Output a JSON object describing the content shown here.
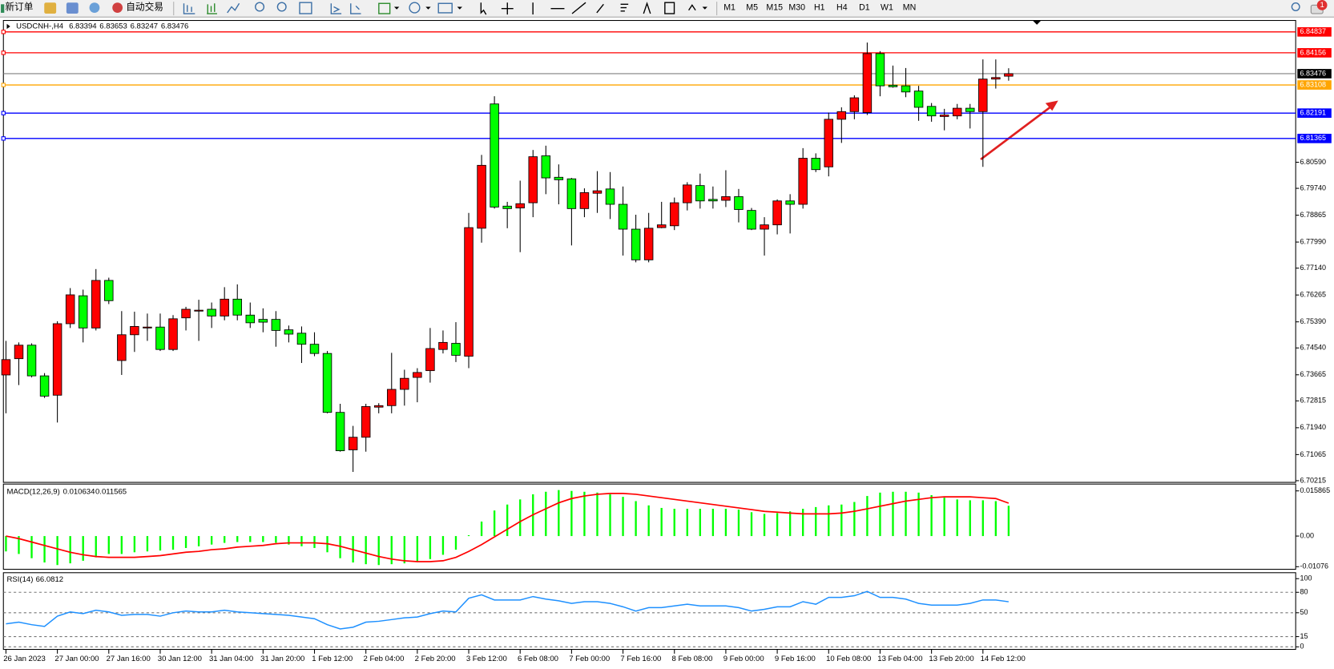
{
  "toolbar": {
    "new_order": "新订单",
    "auto_trading": "自动交易",
    "timeframes": [
      "M1",
      "M5",
      "M15",
      "M30",
      "H1",
      "H4",
      "D1",
      "W1",
      "MN"
    ],
    "badge": "1"
  },
  "chart_data": [
    {
      "type": "candlestick",
      "title": "USDCNH-,H4",
      "categories": [
        "26 Jan 2023",
        null,
        null,
        null,
        "27 Jan 00:00",
        null,
        null,
        null,
        "27 Jan 16:00",
        null,
        null,
        null,
        "30 Jan 12:00",
        null,
        null,
        null,
        "31 Jan 04:00",
        null,
        null,
        null,
        "31 Jan 20:00",
        null,
        null,
        null,
        "1 Feb 12:00",
        null,
        null,
        null,
        "2 Feb 04:00",
        null,
        null,
        null,
        "2 Feb 20:00",
        null,
        null,
        null,
        "3 Feb 12:00",
        null,
        null,
        null,
        "6 Feb 08:00",
        null,
        null,
        null,
        "7 Feb 00:00",
        null,
        null,
        null,
        "7 Feb 16:00",
        null,
        null,
        null,
        "8 Feb 08:00",
        null,
        null,
        null,
        "9 Feb 00:00",
        null,
        null,
        null,
        "9 Feb 16:00",
        null,
        null,
        null,
        "10 Feb 08:00",
        null,
        null,
        null,
        "13 Feb 04:00",
        null,
        null,
        null,
        "13 Feb 20:00",
        null,
        null,
        null,
        "14 Feb 12:00",
        null,
        null
      ],
      "open": [
        6.7366,
        6.7419,
        6.7463,
        6.7363,
        6.73,
        6.7533,
        6.7624,
        6.7519,
        6.7674,
        6.7413,
        6.7497,
        6.7519,
        6.7522,
        6.7449,
        6.7552,
        6.7574,
        6.758,
        6.7558,
        6.7613,
        6.7561,
        6.7547,
        6.7547,
        6.7513,
        6.7502,
        6.7466,
        6.7436,
        6.7244,
        6.7122,
        6.7163,
        6.7261,
        6.7266,
        6.7319,
        6.7358,
        6.738,
        6.7449,
        6.7469,
        6.7427,
        6.7844,
        6.8249,
        6.7916,
        6.791,
        6.7927,
        6.808,
        6.801,
        6.8005,
        6.7908,
        6.7958,
        6.7972,
        6.7922,
        6.7841,
        6.7741,
        6.7846,
        6.7852,
        6.7927,
        6.7983,
        6.7938,
        6.7935,
        6.7947,
        6.7902,
        6.7841,
        6.7855,
        6.7933,
        6.7922,
        6.8072,
        6.8044,
        6.8199,
        6.8224,
        6.8221,
        6.8413,
        6.831,
        6.8308,
        6.8291,
        6.8241,
        6.8208,
        6.821,
        6.8235,
        6.8224,
        6.833,
        6.83394
      ],
      "high": [
        6.7477,
        6.7472,
        6.7469,
        6.7372,
        6.7541,
        6.7649,
        6.7644,
        6.7711,
        6.7683,
        6.7574,
        6.7572,
        6.7566,
        6.7566,
        6.7561,
        6.7588,
        6.7611,
        6.7602,
        6.7652,
        6.7661,
        6.7602,
        6.7583,
        6.7574,
        6.7527,
        6.7524,
        6.7505,
        6.7444,
        6.7272,
        6.72,
        6.7272,
        6.7274,
        6.7438,
        6.7383,
        6.7388,
        6.7519,
        6.7511,
        6.7538,
        6.7894,
        6.8083,
        6.8274,
        6.793,
        6.7999,
        6.8099,
        6.8113,
        6.8052,
        6.8008,
        6.7974,
        6.803,
        6.8027,
        6.798,
        6.7888,
        6.7894,
        6.793,
        6.7944,
        6.7994,
        6.8022,
        6.798,
        6.8033,
        6.7972,
        6.791,
        6.788,
        6.7938,
        6.7955,
        6.8105,
        6.8088,
        6.8221,
        6.8238,
        6.8277,
        6.8449,
        6.8421,
        6.8374,
        6.8366,
        6.8308,
        6.8252,
        6.8233,
        6.8249,
        6.8249,
        6.8394,
        6.8394,
        6.83653
      ],
      "low": [
        6.7241,
        6.7333,
        6.7358,
        6.7291,
        6.7211,
        6.7519,
        6.7472,
        6.7511,
        6.7597,
        6.7366,
        6.7441,
        6.7477,
        6.7444,
        6.7444,
        6.7511,
        6.7477,
        6.7519,
        6.7544,
        6.7544,
        6.7519,
        6.7505,
        6.7458,
        6.7472,
        6.7405,
        6.7427,
        6.7241,
        6.7116,
        6.705,
        6.7116,
        6.7241,
        6.7241,
        6.7266,
        6.7277,
        6.7341,
        6.7436,
        6.7408,
        6.7388,
        6.7797,
        6.7908,
        6.7844,
        6.7766,
        6.788,
        6.7955,
        6.7922,
        6.7788,
        6.788,
        6.7894,
        6.7874,
        6.7755,
        6.7733,
        6.7733,
        6.7844,
        6.7838,
        6.7902,
        6.7908,
        6.7908,
        6.7913,
        6.7863,
        6.7838,
        6.7755,
        6.7824,
        6.7827,
        6.7908,
        6.8027,
        6.8013,
        6.8122,
        6.8199,
        6.8213,
        6.8274,
        6.8302,
        6.8271,
        6.8194,
        6.8191,
        6.8163,
        6.8199,
        6.8169,
        6.8044,
        6.8299,
        6.83247
      ],
      "close": [
        6.7416,
        6.7463,
        6.7363,
        6.7297,
        6.7533,
        6.7627,
        6.7519,
        6.7674,
        6.7608,
        6.7497,
        6.7524,
        6.7522,
        6.7449,
        6.7549,
        6.758,
        6.7577,
        6.7558,
        6.7613,
        6.7561,
        6.7536,
        6.7538,
        6.7511,
        6.7499,
        6.7466,
        6.7436,
        6.7244,
        6.7119,
        6.7163,
        6.7263,
        6.7266,
        6.7319,
        6.7355,
        6.7374,
        6.7452,
        6.7472,
        6.743,
        6.7846,
        6.8049,
        6.7913,
        6.7908,
        6.7924,
        6.8077,
        6.8008,
        6.8002,
        6.7908,
        6.796,
        6.7966,
        6.7922,
        6.7841,
        6.7741,
        6.7844,
        6.7855,
        6.7927,
        6.7985,
        6.7933,
        6.7933,
        6.7947,
        6.7905,
        6.7841,
        6.7855,
        6.7933,
        6.7922,
        6.8072,
        6.8035,
        6.8199,
        6.8224,
        6.8269,
        6.8413,
        6.8308,
        6.8305,
        6.8288,
        6.8238,
        6.821,
        6.8213,
        6.8235,
        6.8224,
        6.833,
        6.8335,
        6.83476
      ],
      "up_color": "#ff0000",
      "down_color": "#00ff00",
      "ylim": [
        6.7016,
        6.8521
      ],
      "yticks": [
        {
          "value": 6.8059,
          "label": "6.80590"
        },
        {
          "value": 6.7974,
          "label": "6.79740"
        },
        6.78865,
        {
          "value": 6.7799,
          "label": "6.77990"
        },
        {
          "value": 6.7714,
          "label": "6.77140"
        },
        6.76265,
        {
          "value": 6.7539,
          "label": "6.75390"
        },
        {
          "value": 6.7454,
          "label": "6.74540"
        },
        6.73665,
        6.72815,
        {
          "value": 6.7194,
          "label": "6.71940"
        },
        6.71065,
        6.70215
      ],
      "hlines": [
        {
          "value": 6.84837,
          "color": "#ff0000"
        },
        {
          "value": 6.84156,
          "color": "#ff0000"
        },
        {
          "value": 6.83108,
          "color": "#ffa500"
        },
        {
          "value": 6.82191,
          "color": "#0000ff"
        },
        {
          "value": 6.81365,
          "color": "#0000ff"
        }
      ]
    },
    {
      "type": "macd",
      "title": "MACD(12,26,9)",
      "histogram": {
        "color": "#00ff00",
        "values": [
          -0.00539,
          -0.00629,
          -0.00778,
          -0.00928,
          -0.01018,
          -0.00958,
          -0.00868,
          -0.00748,
          -0.00629,
          -0.00629,
          -0.00569,
          -0.00539,
          -0.00509,
          -0.00479,
          -0.00419,
          -0.00359,
          -0.00299,
          -0.00239,
          -0.0021,
          -0.0021,
          -0.0021,
          -0.00239,
          -0.00299,
          -0.00359,
          -0.00419,
          -0.00569,
          -0.00778,
          -0.00928,
          -0.00988,
          -0.01018,
          -0.00988,
          -0.00958,
          -0.00898,
          -0.00808,
          -0.00658,
          -0.00479,
          0.0003,
          0.00509,
          0.00898,
          0.01107,
          0.01287,
          0.01467,
          0.01556,
          0.01616,
          0.01586,
          0.01556,
          0.01526,
          0.01467,
          0.01377,
          0.01227,
          0.01078,
          0.00988,
          0.00958,
          0.00958,
          0.00958,
          0.00958,
          0.00958,
          0.00928,
          0.00838,
          0.00778,
          0.00808,
          0.00868,
          0.00958,
          0.01018,
          0.01078,
          0.01107,
          0.01197,
          0.01407,
          0.01526,
          0.01556,
          0.01556,
          0.01526,
          0.01437,
          0.01347,
          0.01287,
          0.01257,
          0.01257,
          0.01227,
          0.010634
        ]
      },
      "signal": {
        "color": "#ff0000",
        "values": [
          0,
          -0.0009,
          -0.0021,
          -0.00329,
          -0.00449,
          -0.00569,
          -0.00658,
          -0.00718,
          -0.00748,
          -0.00748,
          -0.00748,
          -0.00718,
          -0.00688,
          -0.00629,
          -0.00569,
          -0.00539,
          -0.00479,
          -0.00449,
          -0.00389,
          -0.00359,
          -0.00329,
          -0.00269,
          -0.00239,
          -0.00239,
          -0.00239,
          -0.00269,
          -0.00359,
          -0.00479,
          -0.00599,
          -0.00718,
          -0.00808,
          -0.00868,
          -0.00898,
          -0.00898,
          -0.00868,
          -0.00748,
          -0.00539,
          -0.00299,
          -0.0003,
          0.00239,
          0.00509,
          0.00748,
          0.00958,
          0.01167,
          0.01317,
          0.01407,
          0.01467,
          0.01497,
          0.01497,
          0.01467,
          0.01407,
          0.01347,
          0.01287,
          0.01227,
          0.01167,
          0.01107,
          0.01048,
          0.00988,
          0.00928,
          0.00868,
          0.00838,
          0.00808,
          0.00778,
          0.00778,
          0.00778,
          0.00808,
          0.00868,
          0.00958,
          0.01048,
          0.01137,
          0.01227,
          0.01287,
          0.01347,
          0.01377,
          0.01377,
          0.01377,
          0.01347,
          0.01317,
          0.011565
        ]
      },
      "ylim": [
        -0.01167,
        0.01826
      ],
      "yticks": [
        0.015865,
        {
          "value": 0,
          "label": "0.00"
        },
        -0.01076
      ]
    },
    {
      "type": "rsi",
      "title": "RSI(14)",
      "color": "#1e90ff",
      "values": [
        33.8,
        36.3,
        32.5,
        30,
        45,
        51.3,
        48.8,
        53.8,
        51.3,
        46.3,
        47.5,
        47.5,
        45,
        50,
        52.5,
        51.3,
        51.3,
        53.8,
        51.3,
        50,
        48.8,
        47.5,
        46.3,
        43.8,
        41.3,
        32.5,
        26.3,
        28.8,
        36.3,
        37.5,
        40,
        42.5,
        43.8,
        48.8,
        52.5,
        51.3,
        71.3,
        76.3,
        68.8,
        68.8,
        68.8,
        73.8,
        70,
        67.5,
        63.8,
        66.3,
        66.3,
        63.8,
        58.8,
        52.5,
        57.5,
        57.5,
        60,
        62.5,
        60,
        60,
        60,
        57.5,
        52.5,
        55,
        58.8,
        58.8,
        66.3,
        62.5,
        72.5,
        72.5,
        75,
        81.3,
        72.5,
        72.5,
        70,
        63.8,
        61.3,
        61.3,
        61.3,
        63.8,
        68.8,
        68.8,
        66.0812
      ],
      "ylim": [
        -1.25,
        108.75
      ],
      "yticks": [
        100,
        80,
        50,
        15,
        0
      ]
    }
  ]
}
